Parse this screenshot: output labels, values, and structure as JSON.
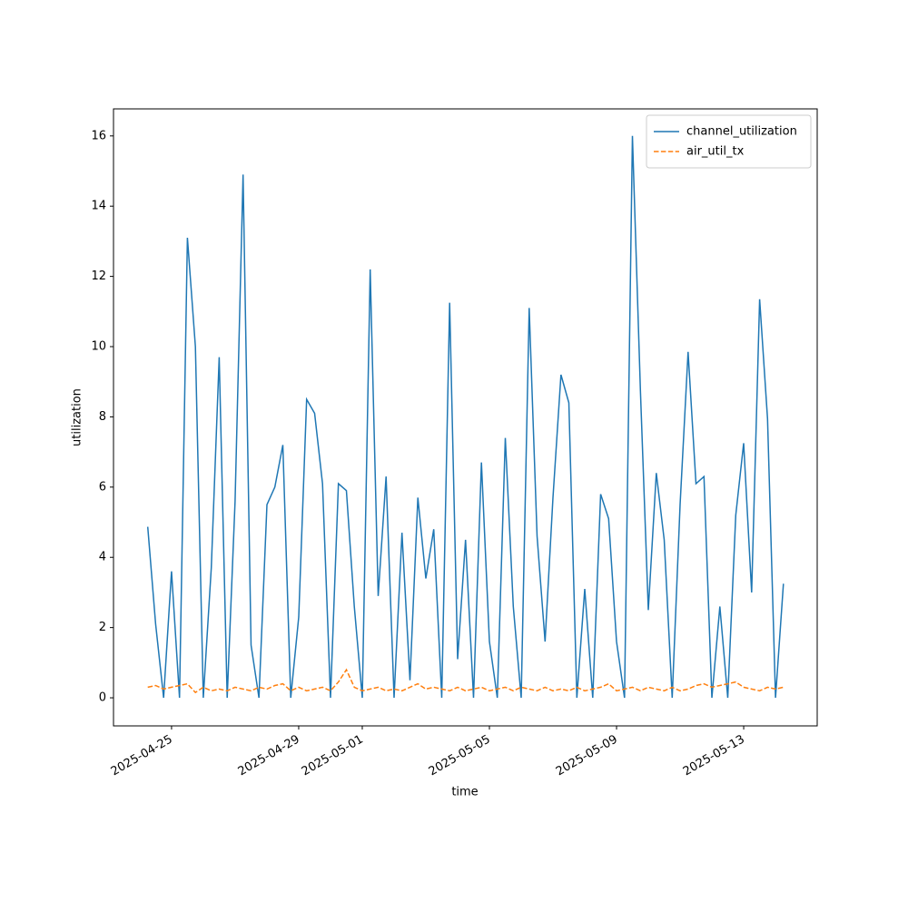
{
  "chart_data": {
    "type": "line",
    "x_label": "time",
    "y_label": "utilization",
    "x": [
      "2025-04-24 06:00",
      "2025-04-24 12:00",
      "2025-04-24 18:00",
      "2025-04-25 00:00",
      "2025-04-25 06:00",
      "2025-04-25 12:00",
      "2025-04-25 18:00",
      "2025-04-26 00:00",
      "2025-04-26 06:00",
      "2025-04-26 12:00",
      "2025-04-26 18:00",
      "2025-04-27 00:00",
      "2025-04-27 06:00",
      "2025-04-27 12:00",
      "2025-04-27 18:00",
      "2025-04-28 00:00",
      "2025-04-28 06:00",
      "2025-04-28 12:00",
      "2025-04-28 18:00",
      "2025-04-29 00:00",
      "2025-04-29 06:00",
      "2025-04-29 12:00",
      "2025-04-29 18:00",
      "2025-04-30 00:00",
      "2025-04-30 06:00",
      "2025-04-30 12:00",
      "2025-04-30 18:00",
      "2025-05-01 00:00",
      "2025-05-01 06:00",
      "2025-05-01 12:00",
      "2025-05-01 18:00",
      "2025-05-02 00:00",
      "2025-05-02 06:00",
      "2025-05-02 12:00",
      "2025-05-02 18:00",
      "2025-05-03 00:00",
      "2025-05-03 06:00",
      "2025-05-03 12:00",
      "2025-05-03 18:00",
      "2025-05-04 00:00",
      "2025-05-04 06:00",
      "2025-05-04 12:00",
      "2025-05-04 18:00",
      "2025-05-05 00:00",
      "2025-05-05 06:00",
      "2025-05-05 12:00",
      "2025-05-05 18:00",
      "2025-05-06 00:00",
      "2025-05-06 06:00",
      "2025-05-06 12:00",
      "2025-05-06 18:00",
      "2025-05-07 00:00",
      "2025-05-07 06:00",
      "2025-05-07 12:00",
      "2025-05-07 18:00",
      "2025-05-08 00:00",
      "2025-05-08 06:00",
      "2025-05-08 12:00",
      "2025-05-08 18:00",
      "2025-05-09 00:00",
      "2025-05-09 06:00",
      "2025-05-09 12:00",
      "2025-05-09 18:00",
      "2025-05-10 00:00",
      "2025-05-10 06:00",
      "2025-05-10 12:00",
      "2025-05-10 18:00",
      "2025-05-11 00:00",
      "2025-05-11 06:00",
      "2025-05-11 12:00",
      "2025-05-11 18:00",
      "2025-05-12 00:00",
      "2025-05-12 06:00",
      "2025-05-12 12:00",
      "2025-05-12 18:00",
      "2025-05-13 00:00",
      "2025-05-13 06:00",
      "2025-05-13 12:00",
      "2025-05-13 18:00",
      "2025-05-14 00:00",
      "2025-05-14 06:00"
    ],
    "series": [
      {
        "name": "channel_utilization",
        "color": "#1f77b4",
        "linestyle": "solid",
        "values": [
          4.87,
          2.1,
          0,
          3.6,
          0,
          13.1,
          10.0,
          0,
          3.7,
          9.7,
          0,
          5.6,
          14.9,
          1.5,
          0,
          5.5,
          6.0,
          7.2,
          0,
          2.3,
          8.5,
          8.1,
          6.1,
          0,
          6.1,
          5.9,
          2.6,
          0,
          12.2,
          2.9,
          6.3,
          0,
          4.7,
          0.5,
          5.7,
          3.4,
          4.8,
          0,
          11.25,
          1.1,
          4.5,
          0,
          6.7,
          1.6,
          0,
          7.4,
          2.6,
          0,
          11.1,
          4.6,
          1.6,
          5.7,
          9.2,
          8.4,
          0,
          3.1,
          0,
          5.8,
          5.1,
          1.6,
          0,
          16.0,
          8.75,
          2.5,
          6.4,
          4.5,
          0,
          5.5,
          9.85,
          6.1,
          6.3,
          0,
          2.6,
          0,
          5.2,
          7.25,
          3.0,
          11.35,
          7.95,
          0,
          3.25
        ]
      },
      {
        "name": "air_util_tx",
        "color": "#ff7f0e",
        "linestyle": "dashed",
        "values": [
          0.3,
          0.35,
          0.25,
          0.3,
          0.35,
          0.4,
          0.15,
          0.3,
          0.2,
          0.25,
          0.2,
          0.3,
          0.25,
          0.2,
          0.3,
          0.25,
          0.35,
          0.4,
          0.2,
          0.3,
          0.2,
          0.25,
          0.3,
          0.2,
          0.45,
          0.8,
          0.3,
          0.2,
          0.25,
          0.3,
          0.2,
          0.25,
          0.2,
          0.3,
          0.4,
          0.25,
          0.3,
          0.25,
          0.2,
          0.3,
          0.2,
          0.25,
          0.3,
          0.2,
          0.25,
          0.3,
          0.2,
          0.3,
          0.25,
          0.2,
          0.3,
          0.2,
          0.25,
          0.2,
          0.3,
          0.2,
          0.25,
          0.3,
          0.4,
          0.2,
          0.25,
          0.3,
          0.2,
          0.3,
          0.25,
          0.2,
          0.3,
          0.2,
          0.25,
          0.35,
          0.4,
          0.3,
          0.35,
          0.4,
          0.45,
          0.3,
          0.25,
          0.2,
          0.3,
          0.25,
          0.3
        ]
      }
    ],
    "xlim": [
      "2025-04-23 04:10",
      "2025-05-15 07:30"
    ],
    "xticks": [
      "2025-04-25",
      "2025-04-29",
      "2025-05-01",
      "2025-05-05",
      "2025-05-09",
      "2025-05-13"
    ],
    "ylim": [
      -0.8,
      16.77
    ],
    "yticks": [
      0,
      2,
      4,
      6,
      8,
      10,
      12,
      14,
      16
    ],
    "legend": "upper right"
  }
}
